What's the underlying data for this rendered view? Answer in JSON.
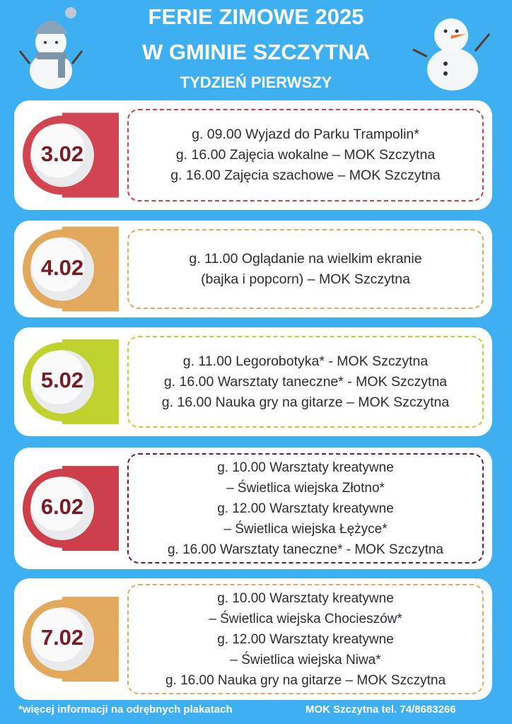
{
  "header": {
    "title_line1": "FERIE ZIMOWE 2025",
    "title_line2": "W GMINIE SZCZYTNA",
    "subtitle": "TYDZIEŃ PIERWSZY"
  },
  "days": [
    {
      "date": "3.02",
      "lines": [
        "g. 09.00 Wyjazd do Parku Trampolin*",
        "g. 16.00 Zajęcia wokalne – MOK Szczytna",
        "g. 16.00 Zajęcia szachowe – MOK Szczytna"
      ]
    },
    {
      "date": "4.02",
      "lines": [
        "g. 11.00 Oglądanie na wielkim ekranie",
        "(bajka i popcorn) – MOK Szczytna"
      ]
    },
    {
      "date": "5.02",
      "lines": [
        "g. 11.00 Legorobotyka* - MOK Szczytna",
        "g. 16.00 Warsztaty taneczne* - MOK Szczytna",
        "g. 16.00 Nauka gry na gitarze – MOK Szczytna"
      ]
    },
    {
      "date": "6.02",
      "lines": [
        "g. 10.00 Warsztaty kreatywne",
        "– Świetlica wiejska Złotno*",
        "g. 12.00 Warsztaty kreatywne",
        "– Świetlica wiejska Łężyce*",
        "g. 16.00 Warsztaty taneczne* - MOK Szczytna"
      ]
    },
    {
      "date": "7.02",
      "lines": [
        "g. 10.00 Warsztaty kreatywne",
        "– Świetlica wiejska Chocieszów*",
        "g. 12.00 Warsztaty kreatywne",
        "– Świetlica wiejska Niwa*",
        "g. 16.00 Nauka gry na gitarze – MOK Szczytna"
      ]
    }
  ],
  "footer": {
    "note": "*więcej informacji na odrębnych plakatach",
    "contact": "MOK Szczytna tel. 74/8683266"
  }
}
